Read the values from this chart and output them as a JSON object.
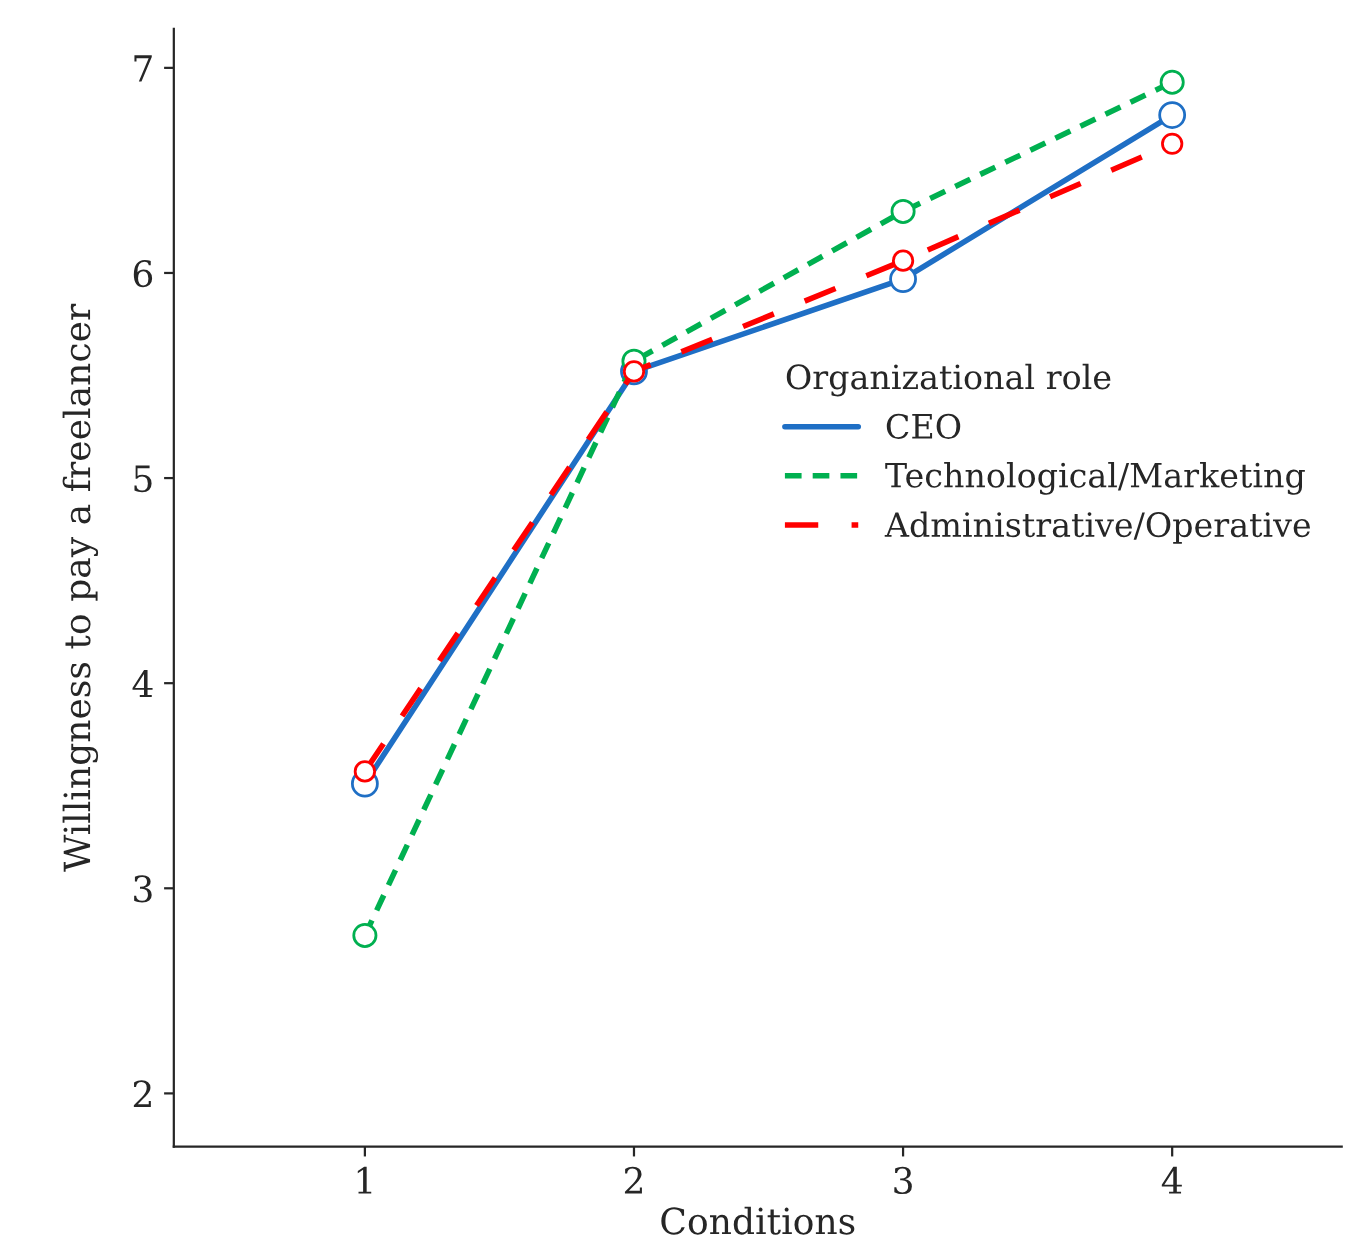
{
  "chart_data": {
    "type": "line",
    "xlabel": "Conditions",
    "ylabel": "Willingness to pay a freelancer",
    "legend_title": "Organizational role",
    "x": [
      1,
      2,
      3,
      4
    ],
    "xlim": [
      0.29,
      4.63
    ],
    "xticks": [
      1,
      2,
      3,
      4
    ],
    "ylim": [
      1.74,
      7.19
    ],
    "yticks": [
      2,
      3,
      4,
      5,
      6,
      7
    ],
    "marker": "circle",
    "grid": false,
    "legend": "right",
    "series": [
      {
        "name": "CEO",
        "color": "#1f6fc5",
        "line_style": "solid",
        "values": [
          3.51,
          5.52,
          5.97,
          6.77
        ]
      },
      {
        "name": "Technological/Marketing",
        "color": "#00b050",
        "line_style": "dashed",
        "values": [
          2.77,
          5.57,
          6.3,
          6.93
        ]
      },
      {
        "name": "Administrative/Operative",
        "color": "#ff0000",
        "line_style": "longdash",
        "values": [
          3.57,
          5.52,
          6.06,
          6.63
        ]
      }
    ]
  }
}
